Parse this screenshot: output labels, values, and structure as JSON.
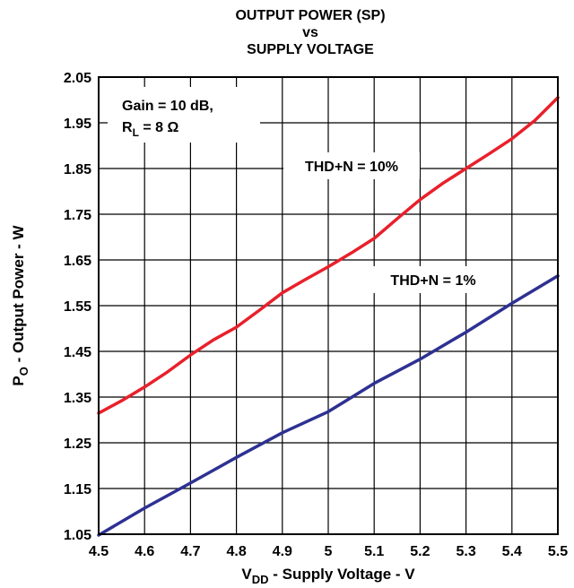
{
  "chart_data": {
    "type": "line",
    "title_lines": [
      "OUTPUT POWER (SP)",
      "vs",
      "SUPPLY VOLTAGE"
    ],
    "xlabel": {
      "main": "V",
      "sub": "DD",
      "rest": " - Supply Voltage - V"
    },
    "ylabel": {
      "main": "P",
      "sub": "O",
      "rest": " - Output Power - W"
    },
    "xlim": [
      4.5,
      5.5
    ],
    "ylim": [
      1.05,
      2.05
    ],
    "x_ticks": [
      "4.5",
      "4.6",
      "4.7",
      "4.8",
      "4.9",
      "5",
      "5.1",
      "5.2",
      "5.3",
      "5.4",
      "5.5"
    ],
    "y_ticks": [
      "2.05",
      "1.95",
      "1.85",
      "1.75",
      "1.65",
      "1.55",
      "1.45",
      "1.35",
      "1.25",
      "1.15",
      "1.05"
    ],
    "grid": true,
    "annotations": {
      "gain_line": "Gain = 10 dB,",
      "rl_main": "R",
      "rl_sub": "L",
      "rl_rest": " = 8 Ω"
    },
    "series": [
      {
        "name": "THD+N = 10%",
        "color": "#e8202b",
        "x": [
          4.5,
          4.55,
          4.6,
          4.65,
          4.7,
          4.75,
          4.8,
          4.85,
          4.9,
          4.95,
          5.0,
          5.05,
          5.1,
          5.15,
          5.2,
          5.25,
          5.3,
          5.35,
          5.4,
          5.45,
          5.5
        ],
        "y": [
          1.315,
          1.342,
          1.372,
          1.405,
          1.442,
          1.475,
          1.503,
          1.54,
          1.578,
          1.607,
          1.635,
          1.665,
          1.697,
          1.74,
          1.782,
          1.818,
          1.85,
          1.882,
          1.915,
          1.955,
          2.005
        ]
      },
      {
        "name": "THD+N = 1%",
        "color": "#2e3192",
        "x": [
          4.5,
          4.6,
          4.7,
          4.8,
          4.9,
          5.0,
          5.1,
          5.2,
          5.3,
          5.4,
          5.5
        ],
        "y": [
          1.048,
          1.107,
          1.162,
          1.218,
          1.272,
          1.318,
          1.38,
          1.433,
          1.492,
          1.555,
          1.615
        ]
      }
    ]
  }
}
